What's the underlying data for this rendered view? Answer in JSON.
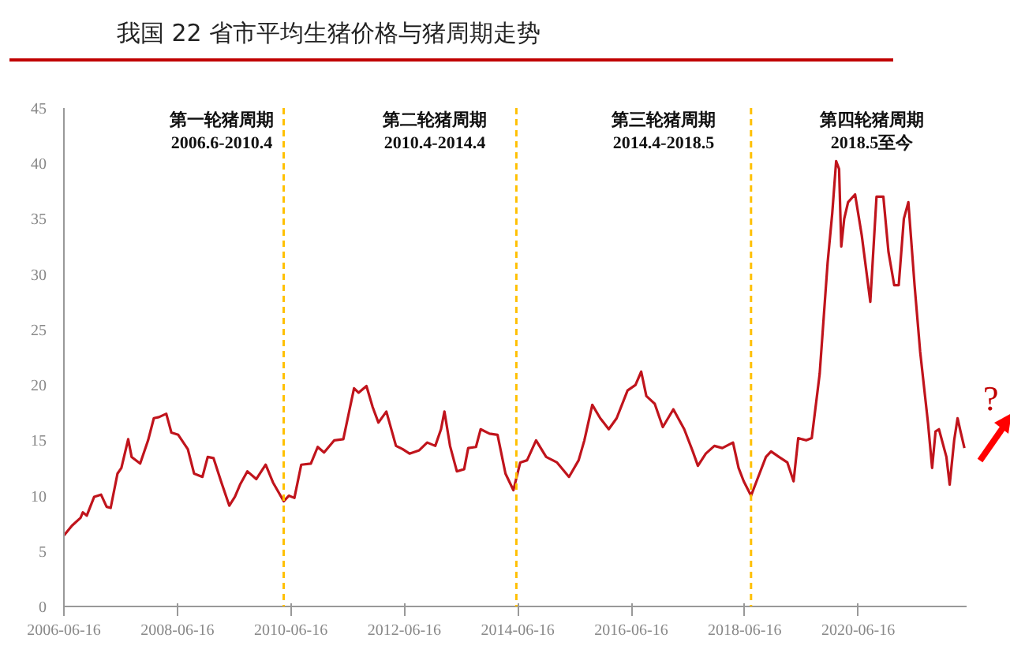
{
  "chart_data": {
    "type": "line",
    "title": "我国 22 省市平均生猪价格与猪周期走势",
    "x": [
      "2006-06-16",
      "2006-08-07",
      "2006-10-01",
      "2006-10-16",
      "2006-11-10",
      "2006-12-28",
      "2007-02-10",
      "2007-03-18",
      "2007-04-13",
      "2007-05-27",
      "2007-06-21",
      "2007-08-04",
      "2007-08-26",
      "2007-10-20",
      "2007-12-10",
      "2008-01-16",
      "2008-02-18",
      "2008-04-05",
      "2008-05-08",
      "2008-06-21",
      "2008-08-22",
      "2008-10-01",
      "2008-11-24",
      "2008-12-28",
      "2009-02-03",
      "2009-03-26",
      "2009-05-16",
      "2009-06-21",
      "2009-07-24",
      "2009-09-09",
      "2009-11-06",
      "2010-01-05",
      "2010-02-21",
      "2010-05-01",
      "2010-06-03",
      "2010-07-09",
      "2010-08-22",
      "2010-10-23",
      "2010-12-06",
      "2011-01-16",
      "2011-03-23",
      "2011-05-20",
      "2011-06-25",
      "2011-07-28",
      "2011-08-26",
      "2011-10-16",
      "2011-11-25",
      "2012-01-01",
      "2012-02-21",
      "2012-04-23",
      "2012-06-06",
      "2012-07-19",
      "2012-09-20",
      "2012-11-10",
      "2013-01-01",
      "2013-02-07",
      "2013-03-01",
      "2013-04-06",
      "2013-05-20",
      "2013-07-06",
      "2013-08-01",
      "2013-09-20",
      "2013-10-20",
      "2013-12-16",
      "2014-02-06",
      "2014-03-29",
      "2014-05-19",
      "2014-07-02",
      "2014-08-15",
      "2014-10-12",
      "2014-12-16",
      "2015-02-24",
      "2015-05-12",
      "2015-07-13",
      "2015-08-19",
      "2015-10-09",
      "2015-11-29",
      "2016-01-23",
      "2016-03-14",
      "2016-05-23",
      "2016-07-13",
      "2016-08-19",
      "2016-09-21",
      "2016-11-14",
      "2017-01-05",
      "2017-03-14",
      "2017-05-23",
      "2017-07-17",
      "2017-08-19",
      "2017-10-09",
      "2017-12-03",
      "2018-01-23",
      "2018-04-02",
      "2018-05-08",
      "2018-06-10",
      "2018-07-27",
      "2018-09-06",
      "2018-10-31",
      "2018-12-03",
      "2019-01-23",
      "2019-03-18",
      "2019-04-27",
      "2019-05-27",
      "2019-07-17",
      "2019-08-22",
      "2019-10-12",
      "2019-12-02",
      "2020-01-01",
      "2020-01-26",
      "2020-02-14",
      "2020-02-28",
      "2020-03-18",
      "2020-04-12",
      "2020-05-27",
      "2020-07-09",
      "2020-09-02",
      "2020-10-12",
      "2020-11-25",
      "2020-12-28",
      "2021-02-03",
      "2021-03-04",
      "2021-04-06",
      "2021-05-05",
      "2021-06-14",
      "2021-07-20",
      "2021-09-09",
      "2021-10-05",
      "2021-10-27",
      "2021-11-18",
      "2022-01-05",
      "2022-01-26",
      "2022-02-24",
      "2022-03-18",
      "2022-04-06",
      "2022-05-01"
    ],
    "series": [
      {
        "color": "#c0141c",
        "values": [
          6.4,
          7.3,
          8.0,
          8.5,
          8.2,
          9.9,
          10.1,
          9.0,
          8.9,
          12.0,
          12.5,
          15.1,
          13.5,
          12.9,
          15.0,
          17.0,
          17.1,
          17.4,
          15.7,
          15.5,
          14.2,
          12.0,
          11.7,
          13.5,
          13.4,
          11.2,
          9.1,
          9.9,
          11.0,
          12.2,
          11.5,
          12.8,
          11.2,
          9.5,
          10.0,
          9.8,
          12.8,
          12.9,
          14.4,
          13.9,
          15.0,
          15.1,
          17.5,
          19.7,
          19.3,
          19.9,
          18.0,
          16.6,
          17.6,
          14.5,
          14.2,
          13.8,
          14.1,
          14.8,
          14.5,
          16.0,
          17.6,
          14.5,
          12.2,
          12.4,
          14.3,
          14.4,
          16.0,
          15.6,
          15.5,
          12.0,
          10.5,
          13.0,
          13.2,
          15.0,
          13.5,
          13.0,
          11.7,
          13.2,
          15.0,
          18.2,
          17.0,
          16.0,
          17.0,
          19.5,
          20.0,
          21.2,
          19.0,
          18.3,
          16.2,
          17.8,
          16.0,
          14.0,
          12.7,
          13.8,
          14.5,
          14.3,
          14.8,
          12.5,
          11.3,
          10.0,
          11.5,
          13.5,
          14.0,
          13.5,
          13.0,
          11.3,
          15.2,
          15.0,
          15.2,
          21.0,
          31.0,
          35.5,
          40.2,
          39.5,
          32.5,
          35.0,
          36.5,
          37.2,
          33.5,
          27.5,
          37.0,
          37.0,
          32.0,
          29.0,
          29.0,
          35.0,
          36.5,
          29.0,
          23.0,
          16.5,
          12.5,
          15.8,
          16.0,
          13.5,
          11.0,
          15.0,
          17.0,
          15.8,
          14.3
        ]
      }
    ],
    "xlim": [
      "2006-06-16",
      "2022-05-15"
    ],
    "xticks": [
      "2006-06-16",
      "2008-06-16",
      "2010-06-16",
      "2012-06-16",
      "2014-06-16",
      "2016-06-16",
      "2018-06-16",
      "2020-06-16"
    ],
    "ylim": [
      0,
      45
    ],
    "yticks": [
      0,
      5,
      10,
      15,
      20,
      25,
      30,
      35,
      40,
      45
    ],
    "grid": false,
    "marker": "none",
    "line_style": "solid",
    "ref_lines": [
      {
        "axis": "x",
        "value": "2010-05-01",
        "color": "#ffc000",
        "line_style": "dashed"
      },
      {
        "axis": "x",
        "value": "2014-06-07",
        "color": "#ffc000",
        "line_style": "dashed"
      },
      {
        "axis": "x",
        "value": "2018-07-27",
        "color": "#ffc000",
        "line_style": "dashed"
      }
    ],
    "annotations": [
      "第一轮猪周期\n2006.6-2010.4",
      "第二轮猪周期\n2010.4-2014.4",
      "第三轮猪周期\n2014.4-2018.5",
      "第四轮猪周期\n2018.5至今",
      "?"
    ]
  }
}
